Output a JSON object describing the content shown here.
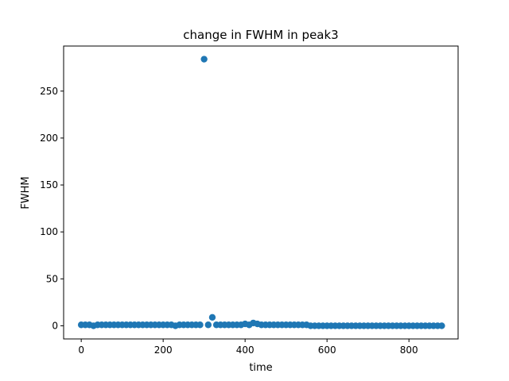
{
  "chart_data": {
    "type": "scatter",
    "title": "change in FWHM in peak3",
    "xlabel": "time",
    "ylabel": "FWHM",
    "xlim": [
      -43,
      920
    ],
    "ylim": [
      -14,
      298
    ],
    "xticks": [
      0,
      200,
      400,
      600,
      800
    ],
    "yticks": [
      0,
      50,
      100,
      150,
      200,
      250
    ],
    "grid": false,
    "marker_color": "#1f77b4",
    "series": [
      {
        "x": [
          0,
          10,
          20,
          30,
          40,
          50,
          60,
          70,
          80,
          90,
          100,
          110,
          120,
          130,
          140,
          150,
          160,
          170,
          180,
          190,
          200,
          210,
          220,
          230,
          240,
          250,
          260,
          270,
          280,
          290,
          300,
          310,
          320,
          330,
          340,
          350,
          360,
          370,
          380,
          390,
          400,
          410,
          420,
          430,
          440,
          450,
          460,
          470,
          480,
          490,
          500,
          510,
          520,
          530,
          540,
          550,
          560,
          570,
          580,
          590,
          600,
          610,
          620,
          630,
          640,
          650,
          660,
          670,
          680,
          690,
          700,
          710,
          720,
          730,
          740,
          750,
          760,
          770,
          780,
          790,
          800,
          810,
          820,
          830,
          840,
          850,
          860,
          870,
          880
        ],
        "y": [
          1,
          1,
          1,
          0,
          1,
          1,
          1,
          1,
          1,
          1,
          1,
          1,
          1,
          1,
          1,
          1,
          1,
          1,
          1,
          1,
          1,
          1,
          1,
          0,
          1,
          1,
          1,
          1,
          1,
          1,
          284,
          1,
          9,
          1,
          1,
          1,
          1,
          1,
          1,
          1,
          2,
          1,
          3,
          2,
          1,
          1,
          1,
          1,
          1,
          1,
          1,
          1,
          1,
          1,
          1,
          1,
          0,
          0,
          0,
          0,
          0,
          0,
          0,
          0,
          0,
          0,
          0,
          0,
          0,
          0,
          0,
          0,
          0,
          0,
          0,
          0,
          0,
          0,
          0,
          0,
          0,
          0,
          0,
          0,
          0,
          0,
          0,
          0,
          0
        ]
      }
    ]
  }
}
